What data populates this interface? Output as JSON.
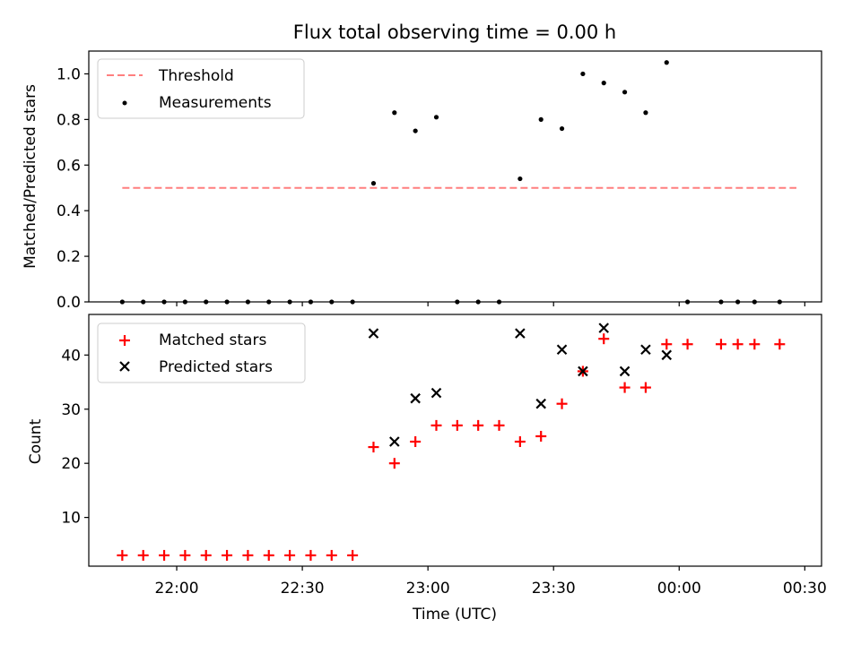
{
  "chart_data": [
    {
      "type": "scatter",
      "title": "Flux total observing time = 0.00 h",
      "ylabel": "Matched/Predicted stars",
      "xlabel": "",
      "ylim": [
        0,
        1.1
      ],
      "xlim": [
        "21:39",
        "00:34"
      ],
      "yticks": [
        0.0,
        0.2,
        0.4,
        0.6,
        0.8,
        1.0
      ],
      "ytick_labels": [
        "0.0",
        "0.2",
        "0.4",
        "0.6",
        "0.8",
        "1.0"
      ],
      "grid": false,
      "legend": "upper-left",
      "threshold": {
        "name": "Threshold",
        "color": "#ff7f7f",
        "x": [
          "21:47",
          "00:28"
        ],
        "y": 0.5
      },
      "series": [
        {
          "name": "Measurements",
          "color": "#000000",
          "x": [
            "21:47",
            "21:52",
            "21:57",
            "22:02",
            "22:07",
            "22:12",
            "22:17",
            "22:22",
            "22:27",
            "22:32",
            "22:37",
            "22:42",
            "22:47",
            "22:52",
            "22:57",
            "23:02",
            "23:07",
            "23:12",
            "23:17",
            "23:22",
            "23:27",
            "23:32",
            "23:37",
            "23:42",
            "23:47",
            "23:52",
            "23:57",
            "00:02",
            "00:10",
            "00:14",
            "00:18",
            "00:24"
          ],
          "y": [
            0.0,
            0.0,
            0.0,
            0.0,
            0.0,
            0.0,
            0.0,
            0.0,
            0.0,
            0.0,
            0.0,
            0.0,
            0.52,
            0.83,
            0.75,
            0.81,
            0.0,
            0.0,
            0.0,
            0.54,
            0.8,
            0.76,
            1.0,
            0.96,
            0.92,
            0.83,
            1.05,
            0.0,
            0.0,
            0.0,
            0.0,
            0.0
          ]
        }
      ]
    },
    {
      "type": "scatter",
      "xlabel": "Time (UTC)",
      "ylabel": "Count",
      "ylim": [
        1,
        47.5
      ],
      "yticks": [
        10,
        20,
        30,
        40
      ],
      "ytick_labels": [
        "10",
        "20",
        "30",
        "40"
      ],
      "xticks": [
        "22:00",
        "22:30",
        "23:00",
        "23:30",
        "00:00",
        "00:30"
      ],
      "grid": false,
      "legend": "upper-left",
      "series": [
        {
          "name": "Matched stars",
          "marker": "plus",
          "color": "#ff0000",
          "x": [
            "21:47",
            "21:52",
            "21:57",
            "22:02",
            "22:07",
            "22:12",
            "22:17",
            "22:22",
            "22:27",
            "22:32",
            "22:37",
            "22:42",
            "22:47",
            "22:52",
            "22:57",
            "23:02",
            "23:07",
            "23:12",
            "23:17",
            "23:22",
            "23:27",
            "23:32",
            "23:37",
            "23:42",
            "23:47",
            "23:52",
            "23:57",
            "00:02",
            "00:10",
            "00:14",
            "00:18",
            "00:24"
          ],
          "y": [
            3,
            3,
            3,
            3,
            3,
            3,
            3,
            3,
            3,
            3,
            3,
            3,
            23,
            20,
            24,
            27,
            27,
            27,
            27,
            24,
            25,
            31,
            37,
            43,
            34,
            34,
            42,
            42,
            42,
            42,
            42,
            42
          ]
        },
        {
          "name": "Predicted stars",
          "marker": "x",
          "color": "#000000",
          "x": [
            "22:47",
            "22:52",
            "22:57",
            "23:02",
            "23:22",
            "23:27",
            "23:32",
            "23:37",
            "23:42",
            "23:47",
            "23:52",
            "23:57"
          ],
          "y": [
            44,
            24,
            32,
            33,
            44,
            31,
            41,
            37,
            45,
            37,
            41,
            40
          ]
        }
      ]
    }
  ]
}
